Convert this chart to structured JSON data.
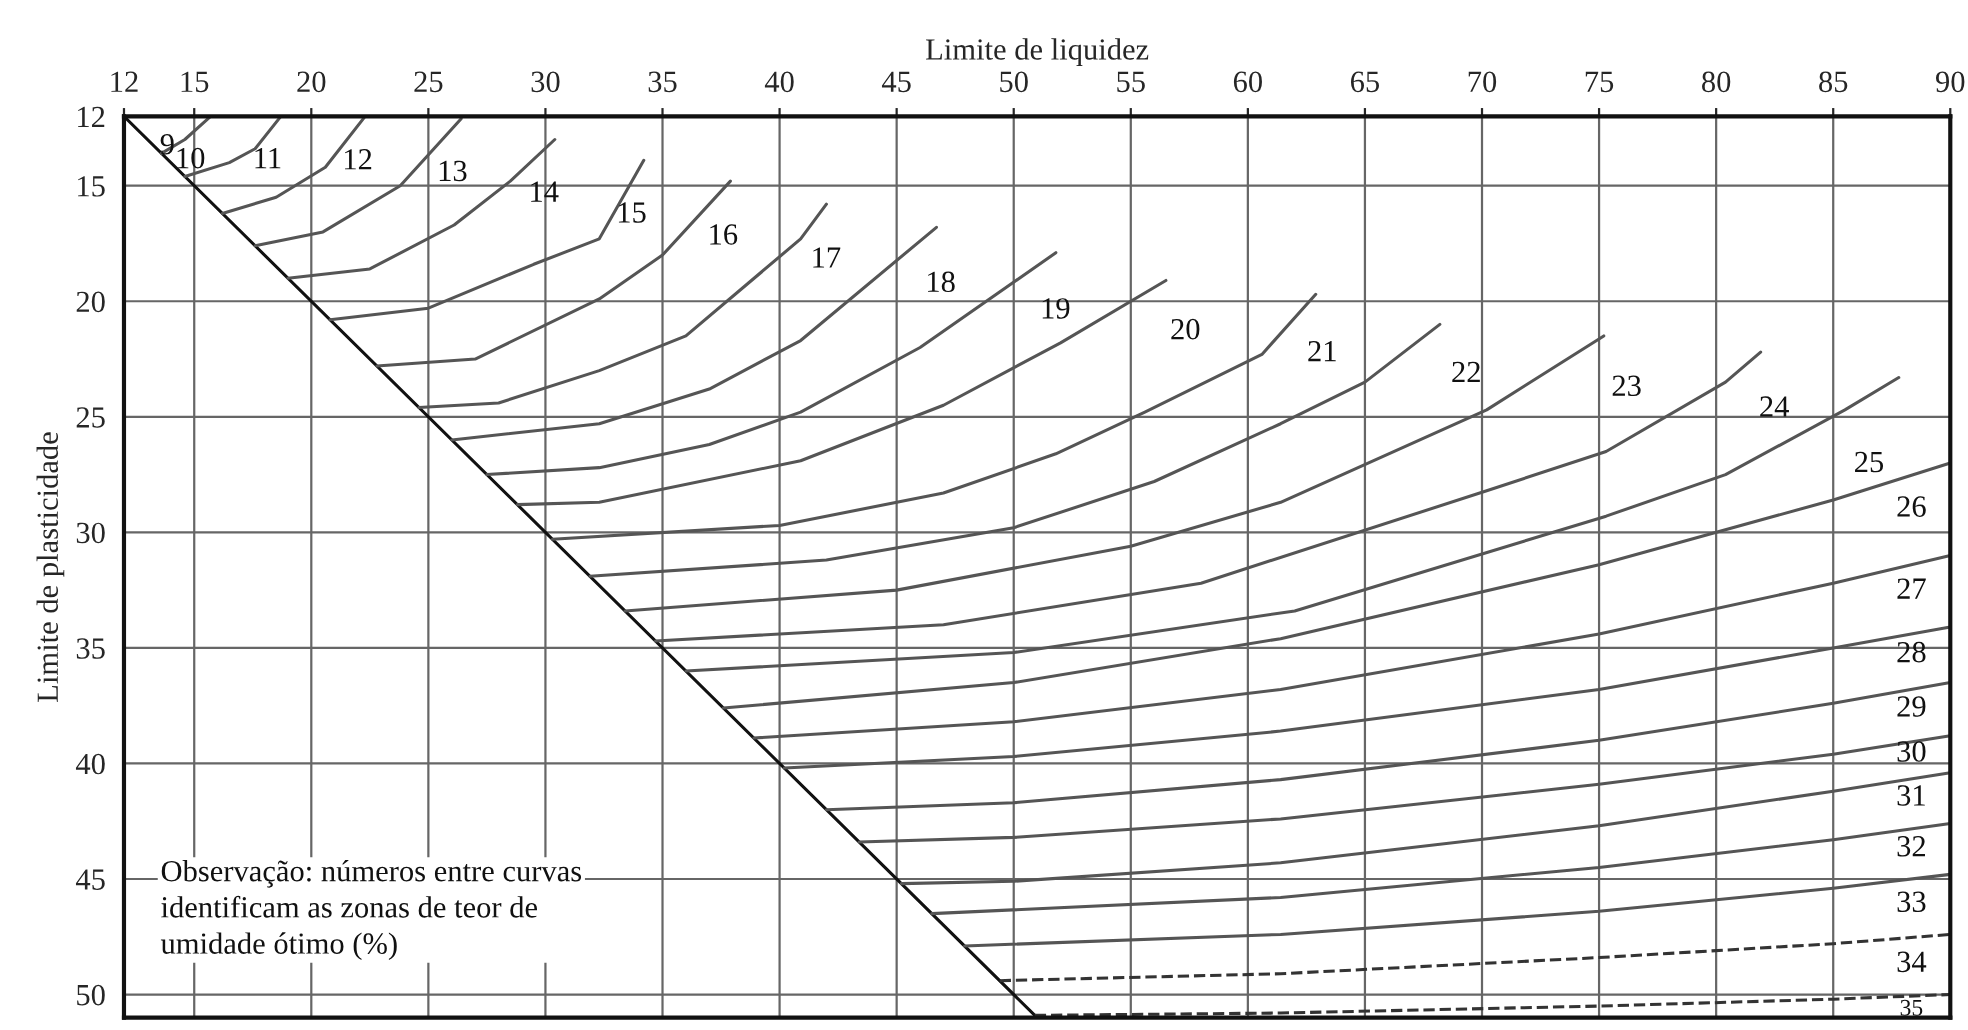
{
  "chart_data": {
    "type": "line",
    "xlabel": "Limite de liquidez",
    "ylabel": "Limite de plasticidade",
    "xlim": [
      12,
      90
    ],
    "ylim": [
      51,
      12
    ],
    "xticks": [
      12,
      15,
      20,
      25,
      30,
      35,
      40,
      45,
      50,
      55,
      60,
      65,
      70,
      75,
      80,
      85,
      90
    ],
    "yticks": [
      12,
      15,
      20,
      25,
      30,
      35,
      40,
      45,
      50
    ],
    "grid": true,
    "series": [
      {
        "color": "#111111",
        "x": [
          12,
          51
        ],
        "values": [
          12,
          51
        ]
      },
      {
        "color": "#555555",
        "x": [
          13.6,
          14.6,
          15.7
        ],
        "values": [
          13.6,
          13.0,
          12
        ]
      },
      {
        "color": "#555555",
        "x": [
          14.6,
          16.5,
          17.6,
          18.7
        ],
        "values": [
          14.6,
          14.0,
          13.4,
          12
        ]
      },
      {
        "color": "#555555",
        "x": [
          16.2,
          18.5,
          20.6,
          22.3
        ],
        "values": [
          16.2,
          15.5,
          14.2,
          12
        ]
      },
      {
        "color": "#555555",
        "x": [
          17.6,
          20.5,
          23.8,
          26.4
        ],
        "values": [
          17.6,
          17.0,
          15.0,
          12.1
        ]
      },
      {
        "color": "#555555",
        "x": [
          19.0,
          22.5,
          26.1,
          28.5,
          30.4
        ],
        "values": [
          19.0,
          18.6,
          16.7,
          14.8,
          13.0
        ]
      },
      {
        "color": "#555555",
        "x": [
          20.8,
          25,
          29.5,
          32.3,
          34.2
        ],
        "values": [
          20.8,
          20.3,
          18.4,
          17.3,
          13.9
        ]
      },
      {
        "color": "#555555",
        "x": [
          22.8,
          27,
          32.3,
          35,
          37.9
        ],
        "values": [
          22.8,
          22.5,
          19.9,
          18.0,
          14.8
        ]
      },
      {
        "color": "#555555",
        "x": [
          24.6,
          28,
          32.3,
          36,
          40.9,
          42
        ],
        "values": [
          24.6,
          24.4,
          23.0,
          21.5,
          17.3,
          15.8
        ]
      },
      {
        "color": "#555555",
        "x": [
          26,
          32.3,
          37,
          40.9,
          46.7
        ],
        "values": [
          26,
          25.3,
          23.8,
          21.7,
          16.8
        ]
      },
      {
        "color": "#555555",
        "x": [
          27.5,
          32.3,
          37,
          40.9,
          46,
          51.8
        ],
        "values": [
          27.5,
          27.2,
          26.2,
          24.8,
          22,
          17.9
        ]
      },
      {
        "color": "#555555",
        "x": [
          28.8,
          32.3,
          40.9,
          47,
          52,
          56.5
        ],
        "values": [
          28.8,
          28.7,
          26.9,
          24.5,
          21.8,
          19.1
        ]
      },
      {
        "color": "#555555",
        "x": [
          30.3,
          40,
          47,
          51.8,
          55.6,
          60.6,
          62.9
        ],
        "values": [
          30.3,
          29.7,
          28.3,
          26.6,
          24.8,
          22.3,
          19.7
        ]
      },
      {
        "color": "#555555",
        "x": [
          31.9,
          42,
          50,
          56,
          61.4,
          65,
          68.2
        ],
        "values": [
          31.9,
          31.2,
          29.8,
          27.8,
          25.3,
          23.5,
          21
        ]
      },
      {
        "color": "#555555",
        "x": [
          33.4,
          45,
          55,
          61.4,
          70.2,
          75.2
        ],
        "values": [
          33.4,
          32.5,
          30.6,
          28.7,
          24.7,
          21.5
        ]
      },
      {
        "color": "#555555",
        "x": [
          34.7,
          47,
          58,
          70.2,
          75.3,
          80.4,
          81.9
        ],
        "values": [
          34.7,
          34,
          32.2,
          28.2,
          26.5,
          23.5,
          22.2
        ]
      },
      {
        "color": "#555555",
        "x": [
          36,
          50,
          62,
          75.3,
          80.4,
          85.5,
          87.8
        ],
        "values": [
          36,
          35.2,
          33.4,
          29.3,
          27.5,
          24.7,
          23.3
        ]
      },
      {
        "color": "#555555",
        "x": [
          37.6,
          50,
          61.4,
          75,
          85,
          90
        ],
        "values": [
          37.6,
          36.5,
          34.6,
          31.4,
          28.6,
          27.0
        ]
      },
      {
        "color": "#555555",
        "x": [
          38.9,
          50,
          61.4,
          75,
          85,
          90
        ],
        "values": [
          38.9,
          38.2,
          36.8,
          34.4,
          32.2,
          31.0
        ]
      },
      {
        "color": "#555555",
        "x": [
          40.2,
          50,
          61.4,
          75,
          85,
          90
        ],
        "values": [
          40.2,
          39.7,
          38.6,
          36.8,
          35.0,
          34.1
        ]
      },
      {
        "color": "#555555",
        "x": [
          42,
          50,
          61.4,
          75,
          85,
          90
        ],
        "values": [
          42,
          41.7,
          40.7,
          39.0,
          37.4,
          36.5
        ]
      },
      {
        "color": "#555555",
        "x": [
          43.4,
          50,
          61.4,
          75,
          85,
          90
        ],
        "values": [
          43.4,
          43.2,
          42.4,
          40.9,
          39.6,
          38.8
        ]
      },
      {
        "color": "#555555",
        "x": [
          45.2,
          50,
          61.4,
          75,
          85,
          90
        ],
        "values": [
          45.2,
          45.1,
          44.3,
          42.7,
          41.2,
          40.4
        ]
      },
      {
        "color": "#555555",
        "x": [
          46.5,
          61.4,
          75,
          85,
          90
        ],
        "values": [
          46.5,
          45.8,
          44.5,
          43.3,
          42.6
        ]
      },
      {
        "color": "#555555",
        "x": [
          47.9,
          61.4,
          75,
          85,
          90
        ],
        "values": [
          47.9,
          47.4,
          46.4,
          45.4,
          44.8
        ]
      },
      {
        "color": "#333333",
        "line_style": "dashed",
        "x": [
          49.4,
          61.4,
          75,
          85,
          90
        ],
        "values": [
          49.4,
          49.1,
          48.4,
          47.8,
          47.4
        ]
      },
      {
        "color": "#333333",
        "line_style": "dashed",
        "x": [
          50.9,
          61.4,
          75,
          85,
          90
        ],
        "values": [
          50.9,
          50.8,
          50.5,
          50.2,
          50.0
        ]
      }
    ],
    "annotations": [
      "9",
      "10",
      "11",
      "12",
      "13",
      "14",
      "15",
      "16",
      "17",
      "18",
      "19",
      "20",
      "21",
      "22",
      "23",
      "24",
      "25",
      "26",
      "27",
      "28",
      "29",
      "30",
      "31",
      "32",
      "33",
      "34",
      "35",
      "Observação: números entre curvas\nidentificam as zonas de teor de\numidade ótimo (%)"
    ]
  }
}
